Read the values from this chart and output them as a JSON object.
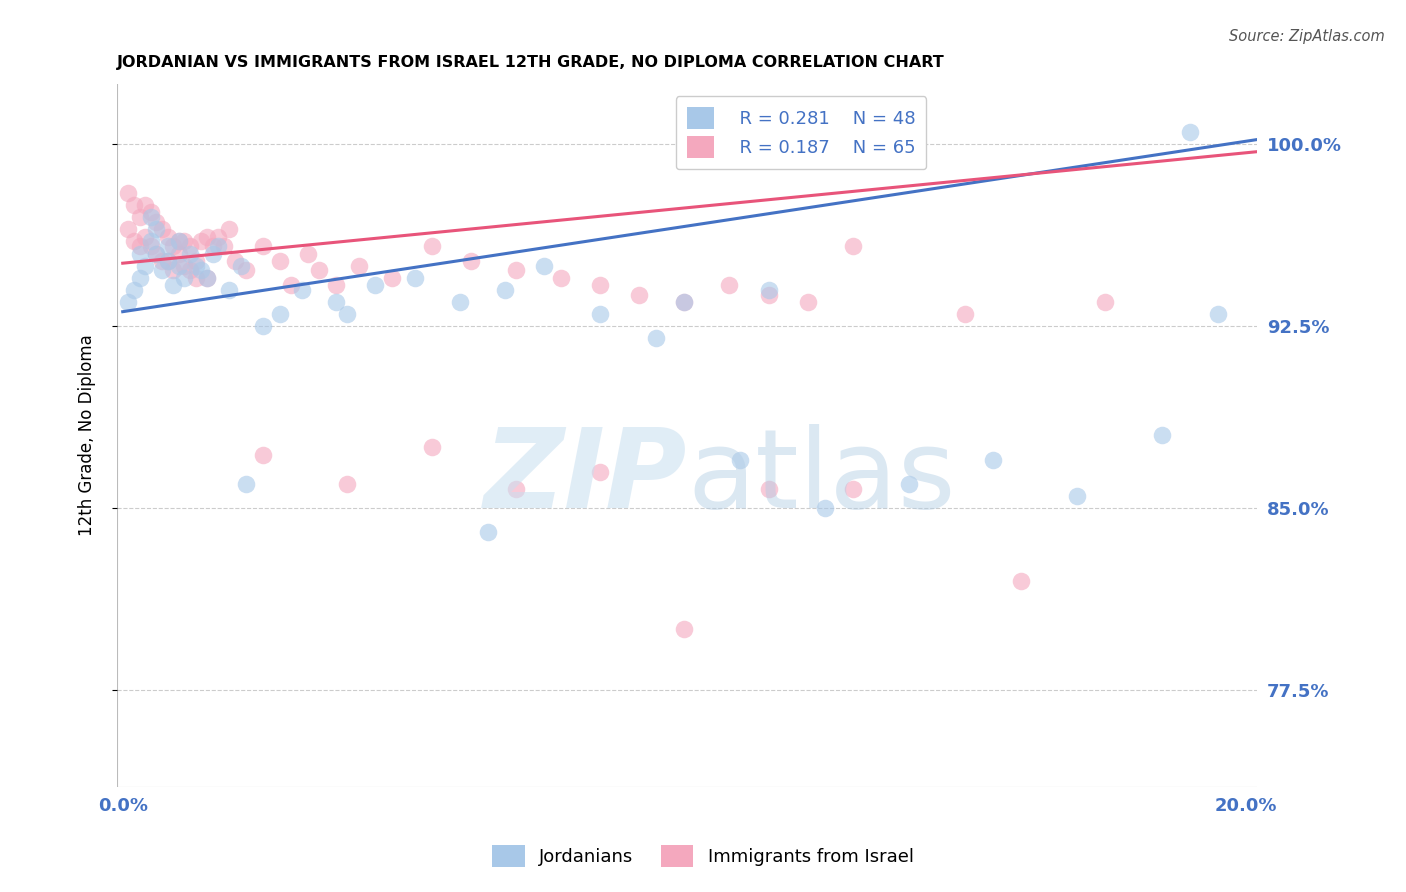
{
  "title": "JORDANIAN VS IMMIGRANTS FROM ISRAEL 12TH GRADE, NO DIPLOMA CORRELATION CHART",
  "source": "Source: ZipAtlas.com",
  "ylabel_label": "12th Grade, No Diploma",
  "ylabel_tick_values": [
    0.775,
    0.85,
    0.925,
    1.0
  ],
  "ylabel_tick_labels": [
    "77.5%",
    "85.0%",
    "92.5%",
    "100.0%"
  ],
  "xlim": [
    -0.001,
    0.202
  ],
  "ylim": [
    0.735,
    1.025
  ],
  "legend_R1": "R = 0.281",
  "legend_N1": "N = 48",
  "legend_R2": "R = 0.187",
  "legend_N2": "N = 65",
  "legend_label1": "Jordanians",
  "legend_label2": "Immigrants from Israel",
  "color_jordanian": "#a8c8e8",
  "color_israel": "#f4a8be",
  "color_line_jordanian": "#4472c4",
  "color_line_israel": "#e8547a",
  "color_blue": "#4472c4",
  "watermark_zip": "ZIP",
  "watermark_atlas": "atlas",
  "background_color": "#ffffff",
  "grid_color": "#cccccc",
  "jordan_line_x": [
    0.0,
    0.202
  ],
  "jordan_line_y": [
    0.931,
    1.002
  ],
  "israel_line_x": [
    0.0,
    0.202
  ],
  "israel_line_y": [
    0.951,
    0.997
  ],
  "jordan_pts_x": [
    0.001,
    0.002,
    0.003,
    0.003,
    0.004,
    0.005,
    0.005,
    0.006,
    0.006,
    0.007,
    0.008,
    0.008,
    0.009,
    0.01,
    0.01,
    0.011,
    0.012,
    0.013,
    0.014,
    0.015,
    0.016,
    0.017,
    0.019,
    0.021,
    0.025,
    0.028,
    0.032,
    0.038,
    0.045,
    0.052,
    0.06,
    0.068,
    0.075,
    0.085,
    0.095,
    0.1,
    0.115,
    0.125,
    0.14,
    0.155,
    0.17,
    0.185,
    0.19,
    0.022,
    0.04,
    0.065,
    0.11,
    0.195
  ],
  "jordan_pts_y": [
    0.935,
    0.94,
    0.945,
    0.955,
    0.95,
    0.96,
    0.97,
    0.955,
    0.965,
    0.948,
    0.958,
    0.952,
    0.942,
    0.96,
    0.95,
    0.945,
    0.955,
    0.95,
    0.948,
    0.945,
    0.955,
    0.958,
    0.94,
    0.95,
    0.925,
    0.93,
    0.94,
    0.935,
    0.942,
    0.945,
    0.935,
    0.94,
    0.95,
    0.93,
    0.92,
    0.935,
    0.94,
    0.85,
    0.86,
    0.87,
    0.855,
    0.88,
    1.005,
    0.86,
    0.93,
    0.84,
    0.87,
    0.93
  ],
  "israel_pts_x": [
    0.001,
    0.001,
    0.002,
    0.002,
    0.003,
    0.003,
    0.004,
    0.004,
    0.005,
    0.005,
    0.006,
    0.006,
    0.007,
    0.007,
    0.008,
    0.008,
    0.009,
    0.009,
    0.01,
    0.01,
    0.011,
    0.011,
    0.012,
    0.012,
    0.013,
    0.013,
    0.014,
    0.015,
    0.015,
    0.016,
    0.017,
    0.018,
    0.019,
    0.02,
    0.022,
    0.025,
    0.028,
    0.03,
    0.033,
    0.035,
    0.038,
    0.042,
    0.048,
    0.055,
    0.062,
    0.07,
    0.078,
    0.085,
    0.092,
    0.1,
    0.108,
    0.115,
    0.122,
    0.13,
    0.025,
    0.04,
    0.055,
    0.07,
    0.085,
    0.1,
    0.115,
    0.13,
    0.15,
    0.16,
    0.175
  ],
  "israel_pts_y": [
    0.98,
    0.965,
    0.975,
    0.96,
    0.97,
    0.958,
    0.975,
    0.962,
    0.972,
    0.958,
    0.968,
    0.955,
    0.965,
    0.952,
    0.962,
    0.952,
    0.958,
    0.948,
    0.955,
    0.96,
    0.95,
    0.96,
    0.948,
    0.958,
    0.952,
    0.945,
    0.96,
    0.962,
    0.945,
    0.958,
    0.962,
    0.958,
    0.965,
    0.952,
    0.948,
    0.958,
    0.952,
    0.942,
    0.955,
    0.948,
    0.942,
    0.95,
    0.945,
    0.958,
    0.952,
    0.948,
    0.945,
    0.942,
    0.938,
    0.935,
    0.942,
    0.938,
    0.935,
    0.958,
    0.872,
    0.86,
    0.875,
    0.858,
    0.865,
    0.8,
    0.858,
    0.858,
    0.93,
    0.82,
    0.935
  ]
}
